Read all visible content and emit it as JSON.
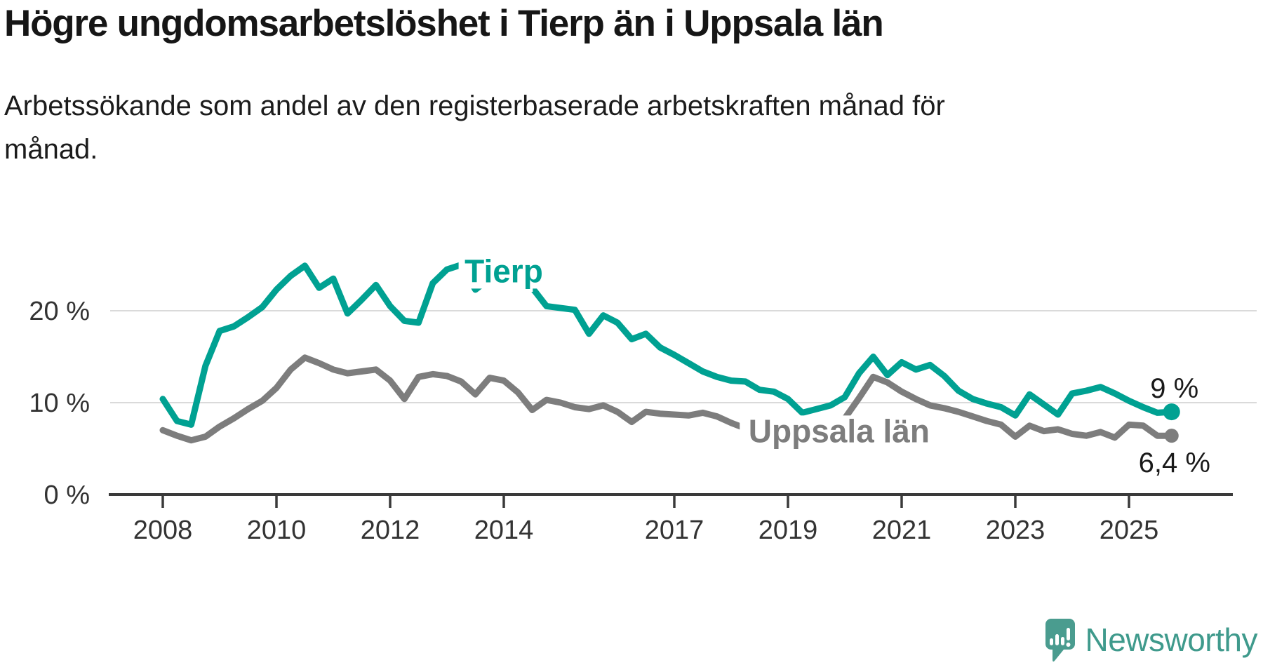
{
  "header": {
    "title": "Högre ungdomsarbetslöshet i Tierp än i Uppsala län",
    "subtitle_line1": "Arbetssökande som andel av den registerbaserade arbetskraften månad för",
    "subtitle_line2": "månad."
  },
  "footer": {
    "brand": "Newsworthy",
    "brand_color": "#3f9a8c",
    "logo_icon": "speech-bubble-bar-chart-icon"
  },
  "chart_data": {
    "type": "line",
    "title": "Högre ungdomsarbetslöshet i Tierp än i Uppsala län",
    "subtitle": "Arbetssökande som andel av den registerbaserade arbetskraften månad för månad.",
    "x_start": 2008.0,
    "x_step": 0.25,
    "xlim": [
      2007.0,
      2026.8
    ],
    "ylim": [
      0,
      27
    ],
    "grid": "horizontal",
    "legend_position": "inline-labels",
    "x_ticks": [
      2008,
      2010,
      2012,
      2014,
      2017,
      2019,
      2021,
      2023,
      2025
    ],
    "x_tick_labels": [
      "2008",
      "2010",
      "2012",
      "2014",
      "2017",
      "2019",
      "2021",
      "2023",
      "2025"
    ],
    "y_ticks": [
      0,
      10,
      20
    ],
    "y_tick_labels": [
      "0 %",
      "10 %",
      "20 %"
    ],
    "axis_color": "#3a3a3a",
    "gridline_color": "#dadada",
    "tick_label_color": "#333333",
    "end_label_color": "#1a1a1a",
    "series": [
      {
        "name": "Tierp",
        "color": "#00a192",
        "end_label": "9 %",
        "end_value": 9.0,
        "values": [
          10.4,
          8.0,
          7.6,
          14.0,
          17.8,
          18.3,
          19.3,
          20.4,
          22.3,
          23.8,
          24.9,
          22.5,
          23.5,
          19.7,
          21.2,
          22.8,
          20.5,
          18.9,
          18.7,
          23.0,
          24.5,
          25.0,
          22.3,
          23.5,
          23.8,
          23.3,
          22.5,
          20.5,
          20.3,
          20.1,
          17.5,
          19.5,
          18.7,
          16.9,
          17.5,
          16.0,
          15.2,
          14.3,
          13.4,
          12.8,
          12.4,
          12.3,
          11.4,
          11.2,
          10.4,
          8.9,
          9.3,
          9.7,
          10.6,
          13.2,
          15.0,
          13.0,
          14.4,
          13.6,
          14.1,
          12.9,
          11.3,
          10.4,
          9.9,
          9.5,
          8.6,
          10.9,
          9.8,
          8.7,
          11.0,
          11.3,
          11.7,
          11.0,
          10.2,
          9.5,
          8.9,
          9.0
        ]
      },
      {
        "name": "Uppsala län",
        "color": "#7d7d7d",
        "end_label": "6,4 %",
        "end_value": 6.4,
        "values": [
          7.0,
          6.4,
          5.9,
          6.3,
          7.4,
          8.3,
          9.3,
          10.2,
          11.6,
          13.6,
          14.9,
          14.3,
          13.6,
          13.2,
          13.4,
          13.6,
          12.4,
          10.4,
          12.8,
          13.1,
          12.9,
          12.3,
          10.9,
          12.7,
          12.4,
          11.1,
          9.2,
          10.3,
          10.0,
          9.5,
          9.3,
          9.7,
          9.0,
          7.9,
          9.0,
          8.8,
          8.7,
          8.6,
          8.9,
          8.5,
          7.8,
          7.2,
          7.0,
          7.1,
          7.4,
          7.2,
          7.3,
          7.6,
          8.3,
          10.5,
          12.8,
          12.2,
          11.2,
          10.4,
          9.7,
          9.4,
          9.0,
          8.5,
          8.0,
          7.6,
          6.3,
          7.5,
          6.9,
          7.1,
          6.6,
          6.4,
          6.8,
          6.2,
          7.6,
          7.5,
          6.4,
          6.4
        ]
      }
    ],
    "annotations": [
      {
        "text": "Tierp",
        "x": 2014.0,
        "y": 23.1,
        "color": "#00a192"
      },
      {
        "text": "Uppsala län",
        "x": 2019.9,
        "y": 5.7,
        "color": "#7d7d7d"
      }
    ]
  }
}
